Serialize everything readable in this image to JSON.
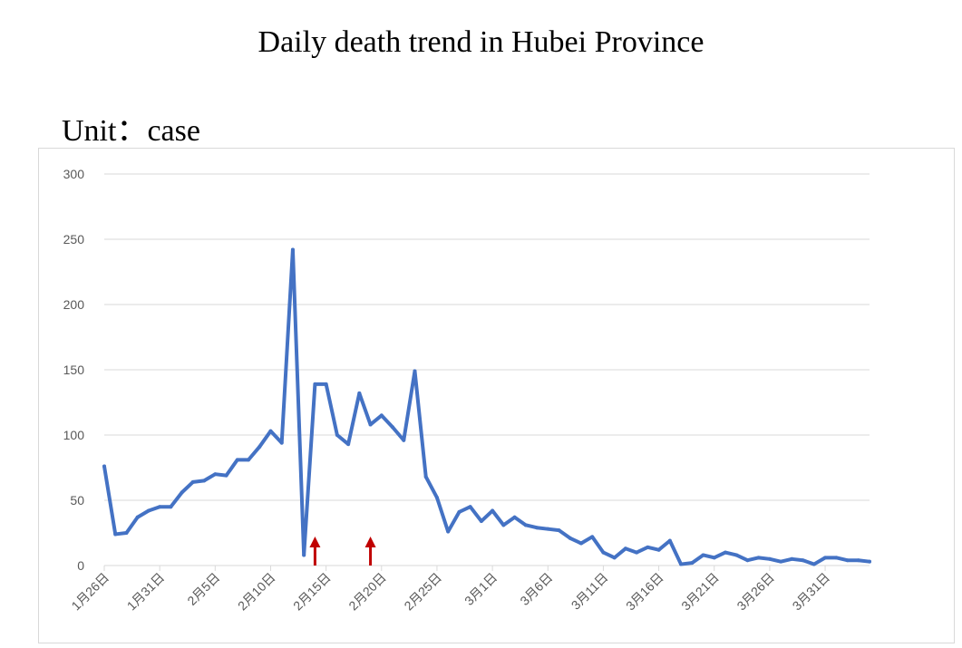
{
  "title": "Daily death trend in Hubei Province",
  "unit_label": "Unit：case",
  "colors": {
    "line": "#4472C4",
    "arrow": "#C00000",
    "grid": "#d9d9d9",
    "tick": "#595959"
  },
  "chart_data": {
    "type": "line",
    "title": "Daily death trend in Hubei Province",
    "ylabel": "Unit：case",
    "ylim": [
      0,
      300
    ],
    "yticks": [
      0,
      50,
      100,
      150,
      200,
      250,
      300
    ],
    "grid": true,
    "x_tick_labels": [
      "1月26日",
      "1月31日",
      "2月5日",
      "2月10日",
      "2月15日",
      "2月20日",
      "2月25日",
      "3月1日",
      "3月6日",
      "3月11日",
      "3月16日",
      "3月21日",
      "3月26日",
      "3月31日"
    ],
    "x_start": "2020-01-26",
    "x_tick_interval_days": 5,
    "arrows_at": [
      "2020-02-14",
      "2020-02-19"
    ],
    "series": [
      {
        "values": [
          76,
          24,
          25,
          37,
          42,
          45,
          45,
          56,
          64,
          65,
          70,
          69,
          81,
          81,
          91,
          103,
          94,
          242,
          8,
          139,
          139,
          100,
          93,
          132,
          108,
          115,
          106,
          96,
          149,
          68,
          52,
          26,
          41,
          45,
          34,
          42,
          31,
          37,
          31,
          29,
          28,
          27,
          21,
          17,
          22,
          10,
          6,
          13,
          10,
          14,
          12,
          19,
          1,
          2,
          8,
          6,
          10,
          8,
          4,
          6,
          5,
          3,
          5,
          4,
          1,
          6,
          6,
          4,
          4,
          3
        ]
      }
    ]
  }
}
